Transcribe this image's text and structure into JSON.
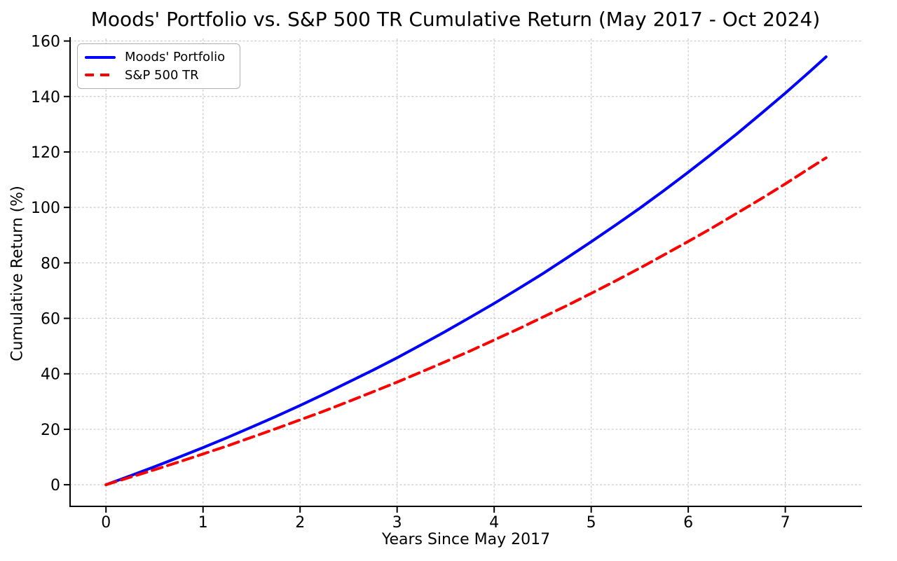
{
  "chart_data": {
    "type": "line",
    "title": "Moods' Portfolio vs. S&P 500 TR Cumulative Return (May 2017 - Oct 2024)",
    "xlabel": "Years Since May 2017",
    "ylabel": "Cumulative Return (%)",
    "x_ticks": [
      0,
      1,
      2,
      3,
      4,
      5,
      6,
      7
    ],
    "y_ticks": [
      0,
      20,
      40,
      60,
      80,
      100,
      120,
      140,
      160
    ],
    "xlim": [
      -0.37,
      7.79
    ],
    "ylim": [
      -7.8,
      160.9
    ],
    "grid": true,
    "legend_position": "upper-left",
    "background": "#ffffff",
    "colors": {
      "grid": "#cbcbcb",
      "axis": "#000000",
      "text": "#000000"
    },
    "x": [
      0,
      0.25,
      0.5,
      0.75,
      1,
      1.25,
      1.5,
      1.75,
      2,
      2.25,
      2.5,
      2.75,
      3,
      3.25,
      3.5,
      3.75,
      4,
      4.25,
      4.5,
      4.75,
      5,
      5.25,
      5.5,
      5.75,
      6,
      6.25,
      6.5,
      6.75,
      7,
      7.25,
      7.42
    ],
    "series": [
      {
        "key": "moods-portfolio",
        "name": "Moods' Portfolio",
        "color": "#0000ff",
        "style": "solid",
        "values": [
          0.0,
          3.2,
          6.5,
          9.9,
          13.4,
          17.0,
          20.8,
          24.6,
          28.6,
          32.7,
          37.0,
          41.3,
          45.8,
          50.5,
          55.3,
          60.3,
          65.4,
          70.7,
          76.1,
          81.8,
          87.6,
          93.6,
          99.7,
          106.1,
          112.7,
          119.5,
          126.5,
          133.8,
          141.2,
          148.9,
          154.3
        ]
      },
      {
        "key": "sp500-tr",
        "name": "S&P 500 TR",
        "color": "#ff0000",
        "style": "dashed",
        "values": [
          0.0,
          2.7,
          5.4,
          8.2,
          11.1,
          14.0,
          17.1,
          20.2,
          23.4,
          26.6,
          30.0,
          33.5,
          37.0,
          40.7,
          44.4,
          48.2,
          52.2,
          56.2,
          60.4,
          64.6,
          69.0,
          73.5,
          78.1,
          82.9,
          87.7,
          92.7,
          97.9,
          103.1,
          108.5,
          114.1,
          117.9
        ]
      }
    ]
  }
}
